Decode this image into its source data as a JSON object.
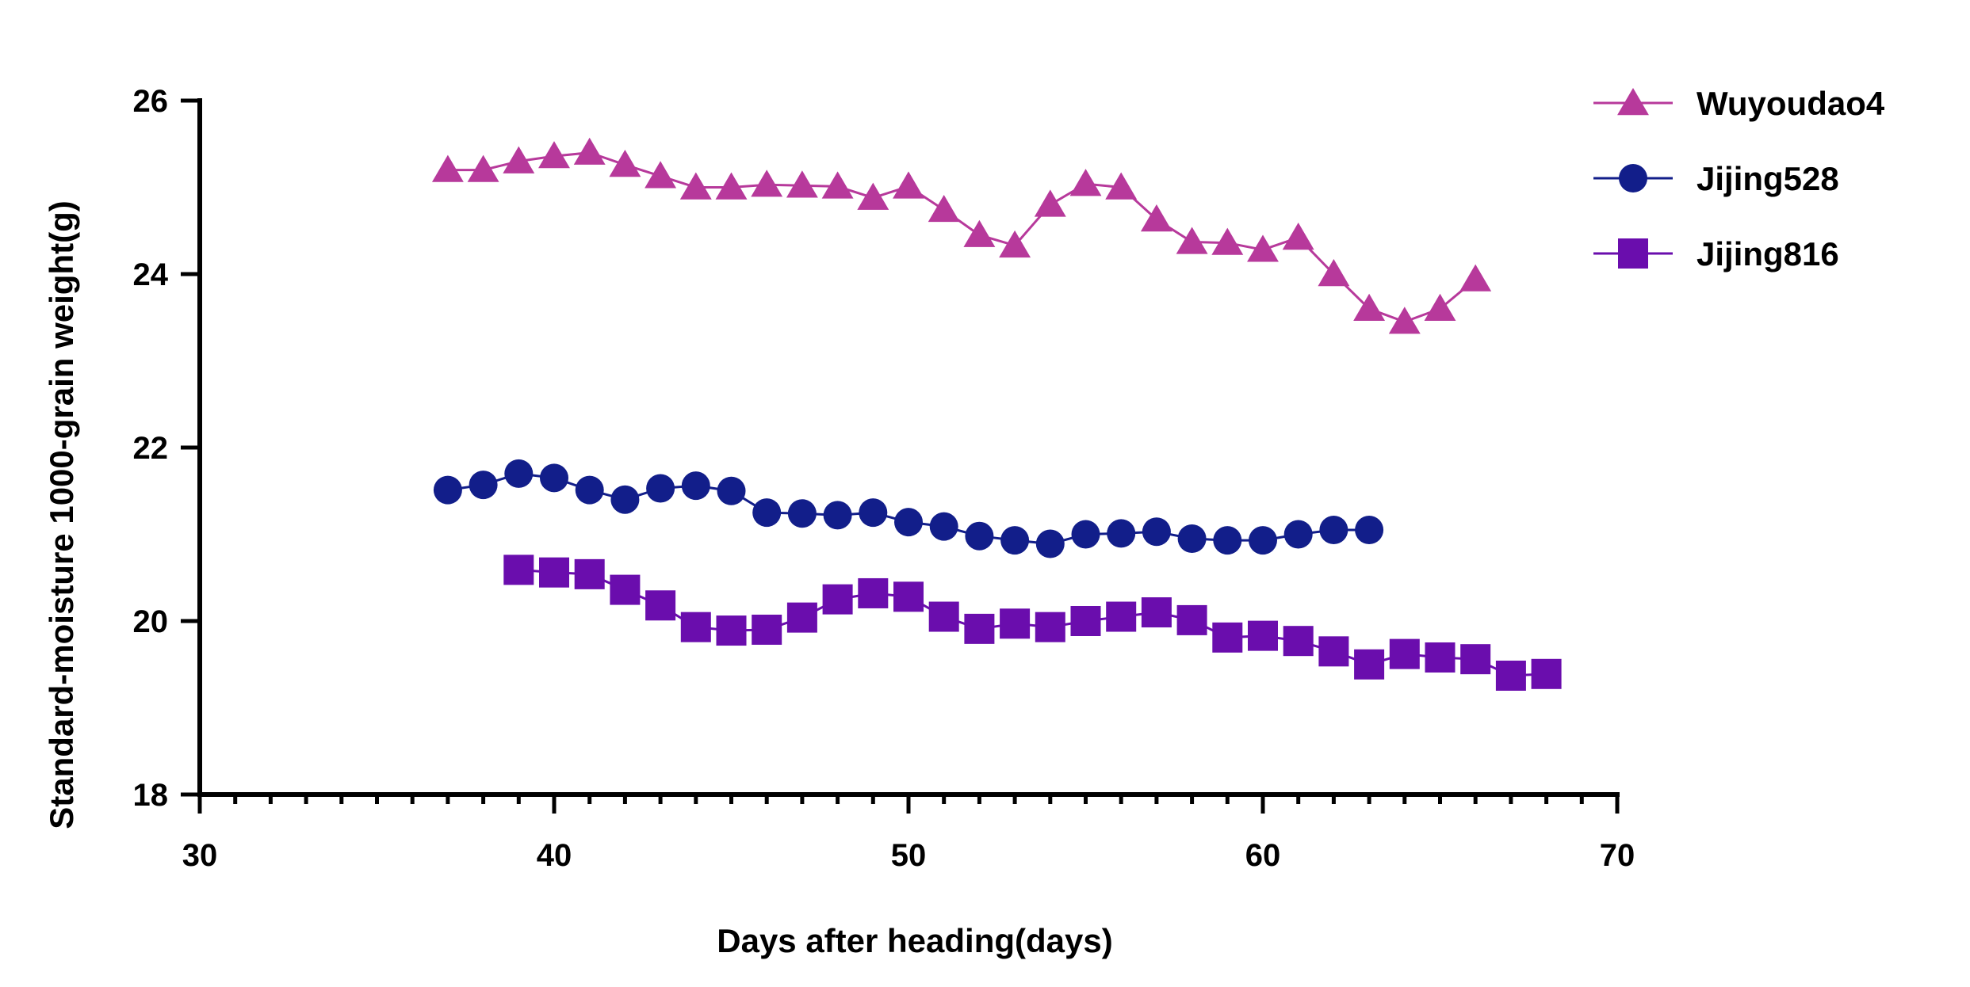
{
  "chart_data": {
    "type": "line",
    "title": "",
    "xlabel": "Days after heading(days)",
    "ylabel": "Standard-moisture 1000-grain weight(g)",
    "xlim": [
      30,
      70
    ],
    "ylim": [
      18,
      26
    ],
    "x_ticks": [
      30,
      40,
      50,
      60,
      70
    ],
    "x_tick_labels": [
      "30",
      "40",
      "50",
      "60",
      "70"
    ],
    "y_ticks": [
      18,
      20,
      22,
      24,
      26
    ],
    "y_tick_labels": [
      "18",
      "20",
      "22",
      "24",
      "26"
    ],
    "x_minor_step": 1,
    "grid": false,
    "legend_position": "top-right",
    "series": [
      {
        "name": "Wuyoudao4",
        "color": "#B7399B",
        "marker": "triangle",
        "x": [
          37,
          38,
          39,
          40,
          41,
          42,
          43,
          44,
          45,
          46,
          47,
          48,
          49,
          50,
          51,
          52,
          53,
          54,
          55,
          56,
          57,
          58,
          59,
          60,
          61,
          62,
          63,
          64,
          65,
          66
        ],
        "values": [
          25.2,
          25.2,
          25.3,
          25.36,
          25.4,
          25.26,
          25.13,
          25.0,
          25.0,
          25.03,
          25.02,
          25.01,
          24.88,
          25.01,
          24.74,
          24.45,
          24.33,
          24.8,
          25.04,
          25.0,
          24.63,
          24.37,
          24.36,
          24.28,
          24.42,
          24.0,
          23.6,
          23.45,
          23.6,
          23.94
        ]
      },
      {
        "name": "Jijing528",
        "color": "#121E8A",
        "marker": "circle",
        "x": [
          37,
          38,
          39,
          40,
          41,
          42,
          43,
          44,
          45,
          46,
          47,
          48,
          49,
          50,
          51,
          52,
          53,
          54,
          55,
          56,
          57,
          58,
          59,
          60,
          61,
          62,
          63
        ],
        "values": [
          21.51,
          21.57,
          21.7,
          21.65,
          21.51,
          21.4,
          21.53,
          21.56,
          21.5,
          21.25,
          21.24,
          21.22,
          21.25,
          21.14,
          21.09,
          20.98,
          20.93,
          20.89,
          21.0,
          21.01,
          21.03,
          20.95,
          20.93,
          20.93,
          21.0,
          21.05,
          21.05
        ]
      },
      {
        "name": "Jijing816",
        "color": "#6A0DAD",
        "marker": "square",
        "x": [
          39,
          40,
          41,
          42,
          43,
          44,
          45,
          46,
          47,
          48,
          49,
          50,
          51,
          52,
          53,
          54,
          55,
          56,
          57,
          58,
          59,
          60,
          61,
          62,
          63,
          64,
          65,
          66,
          67,
          68
        ],
        "values": [
          20.59,
          20.56,
          20.54,
          20.36,
          20.18,
          19.93,
          19.89,
          19.9,
          20.04,
          20.25,
          20.32,
          20.28,
          20.05,
          19.91,
          19.97,
          19.93,
          20.0,
          20.05,
          20.1,
          20.01,
          19.81,
          19.83,
          19.77,
          19.65,
          19.5,
          19.62,
          19.58,
          19.56,
          19.37,
          19.39
        ]
      }
    ]
  }
}
